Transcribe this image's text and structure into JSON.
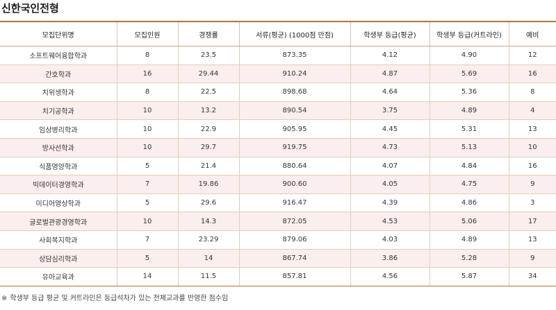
{
  "title": "신한국인전형",
  "table": {
    "headers": [
      "모집단위명",
      "모집인원",
      "경쟁률",
      "서류(평균) (1000점 만점)",
      "학생부 등급(평균)",
      "학생부 등급(커트라인)",
      "예비"
    ],
    "rows": [
      [
        "소프트웨어융합학과",
        "8",
        "23.5",
        "873.35",
        "4.12",
        "4.90",
        "12"
      ],
      [
        "간호학과",
        "16",
        "29.44",
        "910.24",
        "4.87",
        "5.69",
        "16"
      ],
      [
        "치위생학과",
        "8",
        "22.5",
        "898.68",
        "4.64",
        "5.36",
        "8"
      ],
      [
        "치기공학과",
        "10",
        "13.2",
        "890.54",
        "3.75",
        "4.89",
        "4"
      ],
      [
        "임상병리학과",
        "10",
        "22.9",
        "905.95",
        "4.45",
        "5.31",
        "13"
      ],
      [
        "방사선학과",
        "10",
        "29.7",
        "919.75",
        "4.73",
        "5.13",
        "10"
      ],
      [
        "식품영양학과",
        "5",
        "21.4",
        "880.64",
        "4.07",
        "4.84",
        "16"
      ],
      [
        "빅데이터경영학과",
        "7",
        "19.86",
        "900.60",
        "4.05",
        "4.75",
        "9"
      ],
      [
        "미디어영상학과",
        "5",
        "29.6",
        "916.47",
        "4.39",
        "4.86",
        "3"
      ],
      [
        "글로벌관광경영학과",
        "10",
        "14.3",
        "872.05",
        "4.53",
        "5.06",
        "17"
      ],
      [
        "사회복지학과",
        "7",
        "23.29",
        "879.06",
        "4.03",
        "4.89",
        "13"
      ],
      [
        "상담심리학과",
        "5",
        "14",
        "867.74",
        "3.86",
        "5.28",
        "9"
      ],
      [
        "유아교육과",
        "14",
        "11.5",
        "857.81",
        "4.56",
        "5.87",
        "34"
      ]
    ]
  },
  "footnote": {
    "mark": "※",
    "text": "학생부 등급 평균 및 커트라인은 등급석차가 있는 전체교과를 반영한 점수임"
  },
  "colors": {
    "header_border": "#b0722d",
    "alt_row_bg": "#fbeeee",
    "row_border": "#e2cdb9"
  }
}
